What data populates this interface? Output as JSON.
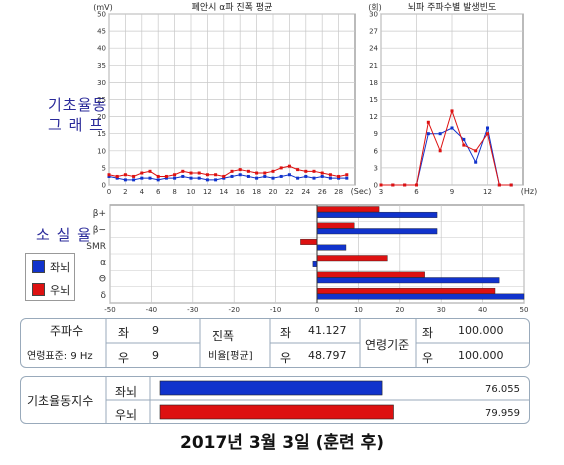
{
  "colors": {
    "left": "#1133cc",
    "right": "#dd1111",
    "grid": "#c8c8c8",
    "accent": "#2a2a9a"
  },
  "side_labels": {
    "graph_line1": "기초율동",
    "graph_line2": "그 래 프",
    "loss_rate": "소 실 율"
  },
  "legend": {
    "left": "좌뇌",
    "right": "우뇌"
  },
  "chart_data": [
    {
      "type": "line",
      "title": "폐안시 α파 진폭 평균",
      "ylabel": "(mV)",
      "xlabel": "(Sec)",
      "ylim": [
        0,
        50
      ],
      "xlim": [
        0,
        30
      ],
      "yticks": [
        0,
        5,
        10,
        15,
        20,
        25,
        30,
        35,
        40,
        45,
        50
      ],
      "xticks": [
        0,
        2,
        4,
        6,
        8,
        10,
        12,
        14,
        16,
        18,
        20,
        22,
        24,
        26,
        28
      ],
      "x": [
        0,
        1,
        2,
        3,
        4,
        5,
        6,
        7,
        8,
        9,
        10,
        11,
        12,
        13,
        14,
        15,
        16,
        17,
        18,
        19,
        20,
        21,
        22,
        23,
        24,
        25,
        26,
        27,
        28,
        29
      ],
      "series": [
        {
          "name": "좌뇌",
          "values": [
            2.5,
            2,
            1.5,
            1.5,
            2,
            2,
            1.5,
            2,
            2,
            2.5,
            2,
            2,
            1.5,
            1.5,
            2,
            2.5,
            3,
            2.5,
            2,
            2.5,
            2,
            2.5,
            3,
            2,
            2.5,
            2,
            2.5,
            2,
            2,
            2
          ]
        },
        {
          "name": "우뇌",
          "values": [
            3,
            2.5,
            3,
            2.5,
            3.5,
            4,
            2.5,
            2.5,
            3,
            4,
            3.5,
            3.5,
            3,
            3,
            2.5,
            4,
            4.5,
            4,
            3.5,
            3.5,
            4,
            5,
            5.5,
            4.5,
            4,
            4,
            3.5,
            3,
            2.5,
            3
          ]
        }
      ],
      "grid": true
    },
    {
      "type": "line",
      "title": "뇌파 주파수별 발생빈도",
      "ylabel": "(회)",
      "xlabel": "(Hz)",
      "ylim": [
        0,
        30
      ],
      "xlim": [
        3,
        15
      ],
      "yticks": [
        0,
        3,
        6,
        9,
        12,
        15,
        18,
        21,
        24,
        27,
        30
      ],
      "xticks": [
        3,
        6,
        9,
        12
      ],
      "x": [
        3,
        4,
        5,
        6,
        7,
        8,
        9,
        10,
        11,
        12,
        13,
        14
      ],
      "series": [
        {
          "name": "좌뇌",
          "values": [
            0,
            0,
            0,
            0,
            9,
            9,
            10,
            8,
            4,
            10,
            0,
            0
          ]
        },
        {
          "name": "우뇌",
          "values": [
            0,
            0,
            0,
            0,
            11,
            6,
            13,
            7,
            6,
            9,
            0,
            0
          ]
        }
      ],
      "grid": true
    },
    {
      "type": "bar",
      "orientation": "horizontal",
      "categories": [
        "β+",
        "β−",
        "SMR",
        "α",
        "Θ",
        "δ"
      ],
      "xlim": [
        -50,
        50
      ],
      "xticks": [
        -50,
        -40,
        -30,
        -20,
        -10,
        0,
        10,
        20,
        30,
        40,
        50
      ],
      "series": [
        {
          "name": "좌뇌",
          "values": [
            29,
            29,
            7,
            -1,
            44,
            50
          ]
        },
        {
          "name": "우뇌",
          "values": [
            15,
            9,
            -4,
            17,
            26,
            43
          ]
        }
      ],
      "grid": true
    },
    {
      "type": "bar",
      "orientation": "horizontal",
      "title": "기초율동지수",
      "categories": [
        "좌뇌",
        "우뇌"
      ],
      "values": [
        76.055,
        79.959
      ],
      "value_labels": [
        "76.055",
        "79.959"
      ],
      "xlim": [
        0,
        100
      ]
    }
  ],
  "table": {
    "freq_label": "주파수",
    "freq_std": "연령표준: 9 Hz",
    "left_label": "좌",
    "right_label": "우",
    "freq_left": "9",
    "freq_right": "9",
    "amp_label": "진폭",
    "amp_ratio": "비율[평균]",
    "amp_left": "41.127",
    "amp_right": "48.797",
    "age_label": "연령기준",
    "age_left": "100.000",
    "age_right": "100.000"
  },
  "index_title": "기초율동지수",
  "caption": "2017년 3월 3일 (훈련 후)"
}
